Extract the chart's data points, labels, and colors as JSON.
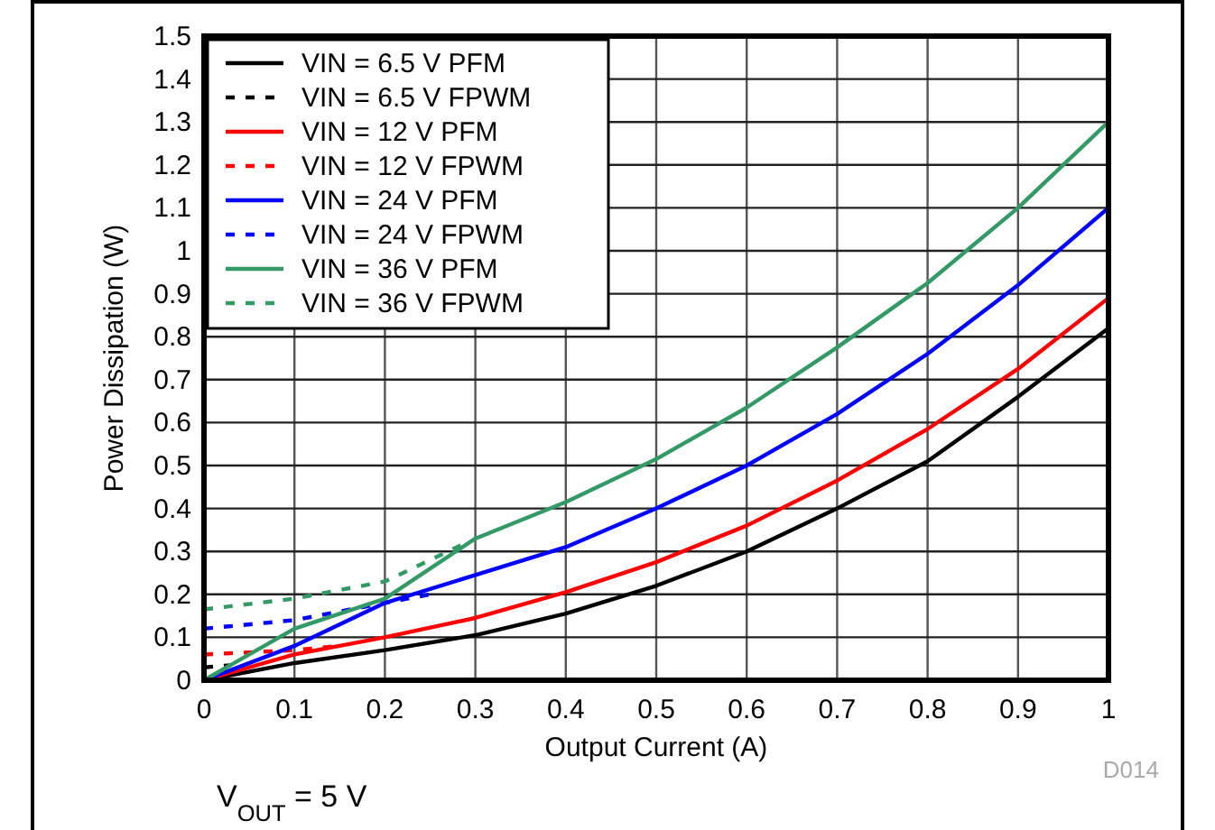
{
  "chart_data": {
    "type": "line",
    "xlabel": "Output Current (A)",
    "ylabel": "Power Dissipation (W)",
    "xlim": [
      0,
      1
    ],
    "xticks": [
      0,
      0.1,
      0.2,
      0.3,
      0.4,
      0.5,
      0.6,
      0.7,
      0.8,
      0.9,
      1
    ],
    "ylim": [
      0,
      1.5
    ],
    "yticks": [
      0,
      0.1,
      0.2,
      0.3,
      0.4,
      0.5,
      0.6,
      0.7,
      0.8,
      0.9,
      1,
      1.1,
      1.2,
      1.3,
      1.4,
      1.5
    ],
    "grid": true,
    "legend": "top left",
    "marker": "none",
    "annotations": [
      "D014",
      "V$_{OUT}$ = 5 V"
    ],
    "series": [
      {
        "name": "VIN = 6.5 V  PFM",
        "color": "#000000",
        "line_style": "solid",
        "x": [
          0,
          0.1,
          0.2,
          0.3,
          0.4,
          0.5,
          0.6,
          0.7,
          0.8,
          0.9,
          1
        ],
        "values": [
          0,
          0.04,
          0.07,
          0.105,
          0.155,
          0.22,
          0.3,
          0.4,
          0.51,
          0.66,
          0.82
        ]
      },
      {
        "name": "VIN = 6.5 V  FPWM",
        "color": "#000000",
        "line_style": "dashed",
        "x": [
          0,
          0.03
        ],
        "values": [
          0.03,
          0.035
        ]
      },
      {
        "name": "VIN = 12 V PFM",
        "color": "#ff0000",
        "line_style": "solid",
        "x": [
          0,
          0.1,
          0.2,
          0.3,
          0.4,
          0.5,
          0.6,
          0.7,
          0.8,
          0.9,
          1
        ],
        "values": [
          0,
          0.06,
          0.1,
          0.145,
          0.205,
          0.275,
          0.36,
          0.465,
          0.585,
          0.725,
          0.89
        ]
      },
      {
        "name": "VIN = 12 V FPWM",
        "color": "#ff0000",
        "line_style": "dashed",
        "x": [
          0,
          0.1,
          0.15
        ],
        "values": [
          0.06,
          0.07,
          0.08
        ]
      },
      {
        "name": "VIN = 24 V PFM",
        "color": "#0000ff",
        "line_style": "solid",
        "x": [
          0,
          0.1,
          0.2,
          0.3,
          0.4,
          0.5,
          0.6,
          0.7,
          0.8,
          0.9,
          1
        ],
        "values": [
          0,
          0.08,
          0.18,
          0.245,
          0.31,
          0.4,
          0.5,
          0.62,
          0.76,
          0.92,
          1.1
        ]
      },
      {
        "name": "VIN = 24 V FPWM",
        "color": "#0000ff",
        "line_style": "dashed",
        "x": [
          0,
          0.1,
          0.15,
          0.25
        ],
        "values": [
          0.12,
          0.14,
          0.16,
          0.2
        ]
      },
      {
        "name": "VIN = 36 V PFM",
        "color": "#339966",
        "line_style": "solid",
        "x": [
          0,
          0.1,
          0.2,
          0.3,
          0.4,
          0.5,
          0.6,
          0.7,
          0.8,
          0.9,
          1
        ],
        "values": [
          0,
          0.12,
          0.19,
          0.33,
          0.415,
          0.515,
          0.635,
          0.775,
          0.925,
          1.1,
          1.3
        ]
      },
      {
        "name": "VIN = 36 V FPWM",
        "color": "#339966",
        "line_style": "dashed",
        "x": [
          0,
          0.1,
          0.2,
          0.29
        ],
        "values": [
          0.165,
          0.19,
          0.23,
          0.32
        ]
      }
    ]
  }
}
